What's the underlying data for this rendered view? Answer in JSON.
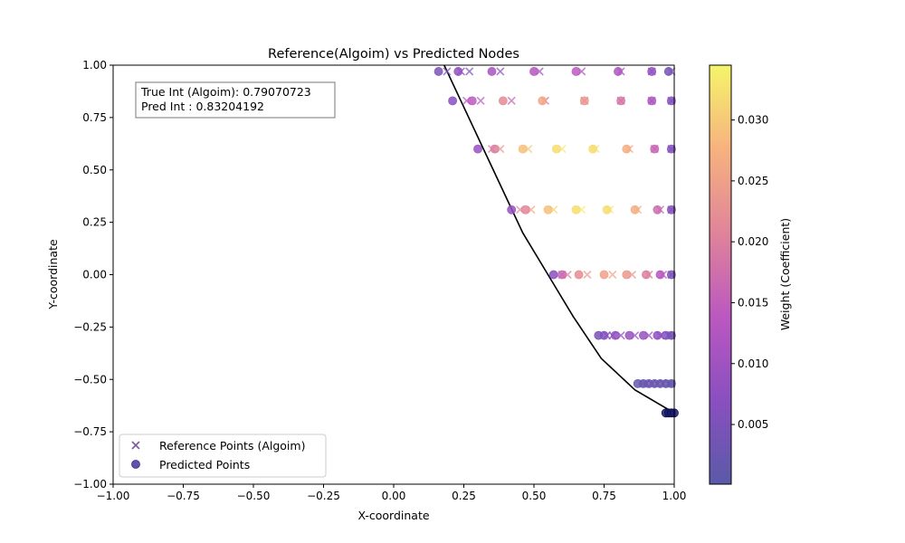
{
  "chart_data": {
    "type": "scatter",
    "title": "Reference(Algoim) vs Predicted Nodes",
    "xlabel": "X-coordinate",
    "ylabel": "Y-coordinate",
    "xlim": [
      -1.0,
      1.0
    ],
    "ylim": [
      -1.0,
      1.0
    ],
    "x_ticks": [
      "−1.00",
      "−0.75",
      "−0.50",
      "−0.25",
      "0.00",
      "0.25",
      "0.50",
      "0.75",
      "1.00"
    ],
    "y_ticks": [
      "−1.00",
      "−0.75",
      "−0.50",
      "−0.25",
      "0.00",
      "0.25",
      "0.50",
      "0.75",
      "1.00"
    ],
    "grid": false,
    "annotation": {
      "line1": "True Int (Algoim): 0.79070723",
      "line2": "Pred Int : 0.83204192",
      "position": "top-left"
    },
    "legend": {
      "position": "bottom-left",
      "entries": [
        "Reference Points (Algoim)",
        "Predicted Points"
      ]
    },
    "colorbar": {
      "label": "Weight (Coefficient)",
      "colormap": "plasma",
      "range": [
        0.0001,
        0.0345
      ],
      "ticks": [
        "0.005",
        "0.010",
        "0.015",
        "0.020",
        "0.025",
        "0.030"
      ],
      "tick_values": [
        0.005,
        0.01,
        0.015,
        0.02,
        0.025,
        0.03
      ]
    },
    "boundary_curve": {
      "color": "#000000",
      "points": [
        [
          0.18,
          1.0
        ],
        [
          0.25,
          0.8
        ],
        [
          0.32,
          0.6
        ],
        [
          0.39,
          0.4
        ],
        [
          0.46,
          0.2
        ],
        [
          0.55,
          0.0
        ],
        [
          0.64,
          -0.2
        ],
        [
          0.74,
          -0.4
        ],
        [
          0.86,
          -0.55
        ],
        [
          1.0,
          -0.66
        ]
      ]
    },
    "series": [
      {
        "name": "Reference Points (Algoim)",
        "marker": "x",
        "points": [
          [
            0.19,
            0.97,
            0.0056
          ],
          [
            0.24,
            0.97,
            0.0065
          ],
          [
            0.27,
            0.97,
            0.006
          ],
          [
            0.38,
            0.97,
            0.008
          ],
          [
            0.52,
            0.97,
            0.01
          ],
          [
            0.67,
            0.97,
            0.012
          ],
          [
            0.81,
            0.97,
            0.011
          ],
          [
            0.92,
            0.97,
            0.009
          ],
          [
            0.99,
            0.97,
            0.006
          ],
          [
            0.26,
            0.83,
            0.013
          ],
          [
            0.31,
            0.83,
            0.014
          ],
          [
            0.42,
            0.83,
            0.016
          ],
          [
            0.54,
            0.83,
            0.018
          ],
          [
            0.68,
            0.83,
            0.016
          ],
          [
            0.81,
            0.83,
            0.013
          ],
          [
            0.92,
            0.83,
            0.01
          ],
          [
            0.99,
            0.83,
            0.006
          ],
          [
            0.35,
            0.6,
            0.02
          ],
          [
            0.38,
            0.6,
            0.024
          ],
          [
            0.48,
            0.6,
            0.03
          ],
          [
            0.6,
            0.6,
            0.033
          ],
          [
            0.72,
            0.6,
            0.033
          ],
          [
            0.84,
            0.6,
            0.026
          ],
          [
            0.93,
            0.6,
            0.016
          ],
          [
            0.99,
            0.6,
            0.006
          ],
          [
            0.45,
            0.31,
            0.022
          ],
          [
            0.49,
            0.31,
            0.026
          ],
          [
            0.57,
            0.31,
            0.031
          ],
          [
            0.67,
            0.31,
            0.034
          ],
          [
            0.77,
            0.31,
            0.033
          ],
          [
            0.87,
            0.31,
            0.027
          ],
          [
            0.95,
            0.31,
            0.016
          ],
          [
            0.99,
            0.31,
            0.007
          ],
          [
            0.6,
            0.0,
            0.019
          ],
          [
            0.62,
            0.0,
            0.021
          ],
          [
            0.69,
            0.0,
            0.024
          ],
          [
            0.78,
            0.0,
            0.026
          ],
          [
            0.85,
            0.0,
            0.024
          ],
          [
            0.91,
            0.0,
            0.02
          ],
          [
            0.96,
            0.0,
            0.014
          ],
          [
            0.99,
            0.0,
            0.006
          ],
          [
            0.76,
            -0.29,
            0.006
          ],
          [
            0.78,
            -0.29,
            0.007
          ],
          [
            0.81,
            -0.29,
            0.008
          ],
          [
            0.86,
            -0.29,
            0.009
          ],
          [
            0.91,
            -0.29,
            0.009
          ],
          [
            0.95,
            -0.29,
            0.008
          ],
          [
            0.98,
            -0.29,
            0.006
          ],
          [
            0.99,
            -0.29,
            0.004
          ],
          [
            0.89,
            -0.52,
            0.002
          ],
          [
            0.9,
            -0.52,
            0.0022
          ],
          [
            0.92,
            -0.52,
            0.0025
          ],
          [
            0.94,
            -0.52,
            0.0025
          ],
          [
            0.96,
            -0.52,
            0.0022
          ],
          [
            0.98,
            -0.52,
            0.002
          ],
          [
            0.99,
            -0.52,
            0.0015
          ],
          [
            0.98,
            -0.66,
            0.0003
          ],
          [
            0.99,
            -0.66,
            0.0003
          ],
          [
            0.995,
            -0.66,
            0.0002
          ]
        ]
      },
      {
        "name": "Predicted Points",
        "marker": "o",
        "points": [
          [
            0.16,
            0.97,
            0.005
          ],
          [
            0.23,
            0.97,
            0.008
          ],
          [
            0.35,
            0.97,
            0.011
          ],
          [
            0.5,
            0.97,
            0.013
          ],
          [
            0.65,
            0.97,
            0.014
          ],
          [
            0.8,
            0.97,
            0.012
          ],
          [
            0.92,
            0.97,
            0.008
          ],
          [
            0.98,
            0.97,
            0.004
          ],
          [
            0.21,
            0.83,
            0.007
          ],
          [
            0.28,
            0.83,
            0.014
          ],
          [
            0.39,
            0.83,
            0.022
          ],
          [
            0.53,
            0.83,
            0.026
          ],
          [
            0.68,
            0.83,
            0.024
          ],
          [
            0.81,
            0.83,
            0.019
          ],
          [
            0.92,
            0.83,
            0.012
          ],
          [
            0.99,
            0.83,
            0.006
          ],
          [
            0.3,
            0.6,
            0.009
          ],
          [
            0.36,
            0.6,
            0.02
          ],
          [
            0.46,
            0.6,
            0.029
          ],
          [
            0.58,
            0.6,
            0.032
          ],
          [
            0.71,
            0.6,
            0.032
          ],
          [
            0.83,
            0.6,
            0.027
          ],
          [
            0.93,
            0.6,
            0.016
          ],
          [
            0.99,
            0.6,
            0.006
          ],
          [
            0.42,
            0.31,
            0.009
          ],
          [
            0.47,
            0.31,
            0.021
          ],
          [
            0.55,
            0.31,
            0.029
          ],
          [
            0.65,
            0.31,
            0.032
          ],
          [
            0.76,
            0.31,
            0.032
          ],
          [
            0.86,
            0.31,
            0.027
          ],
          [
            0.94,
            0.31,
            0.017
          ],
          [
            0.99,
            0.31,
            0.006
          ],
          [
            0.57,
            0.0,
            0.007
          ],
          [
            0.6,
            0.0,
            0.016
          ],
          [
            0.66,
            0.0,
            0.022
          ],
          [
            0.75,
            0.0,
            0.025
          ],
          [
            0.83,
            0.0,
            0.024
          ],
          [
            0.9,
            0.0,
            0.02
          ],
          [
            0.95,
            0.0,
            0.013
          ],
          [
            0.99,
            0.0,
            0.005
          ],
          [
            0.73,
            -0.29,
            0.004
          ],
          [
            0.75,
            -0.29,
            0.006
          ],
          [
            0.79,
            -0.29,
            0.008
          ],
          [
            0.84,
            -0.29,
            0.009
          ],
          [
            0.89,
            -0.29,
            0.009
          ],
          [
            0.94,
            -0.29,
            0.008
          ],
          [
            0.97,
            -0.29,
            0.006
          ],
          [
            0.99,
            -0.29,
            0.004
          ],
          [
            0.87,
            -0.52,
            0.0015
          ],
          [
            0.89,
            -0.52,
            0.002
          ],
          [
            0.91,
            -0.52,
            0.0025
          ],
          [
            0.93,
            -0.52,
            0.0025
          ],
          [
            0.95,
            -0.52,
            0.0022
          ],
          [
            0.97,
            -0.52,
            0.002
          ],
          [
            0.99,
            -0.52,
            0.0015
          ],
          [
            0.97,
            -0.66,
            0.0001
          ],
          [
            0.98,
            -0.66,
            0.0001
          ],
          [
            0.99,
            -0.66,
            0.0001
          ],
          [
            1.0,
            -0.66,
            0.0001
          ]
        ]
      }
    ]
  }
}
